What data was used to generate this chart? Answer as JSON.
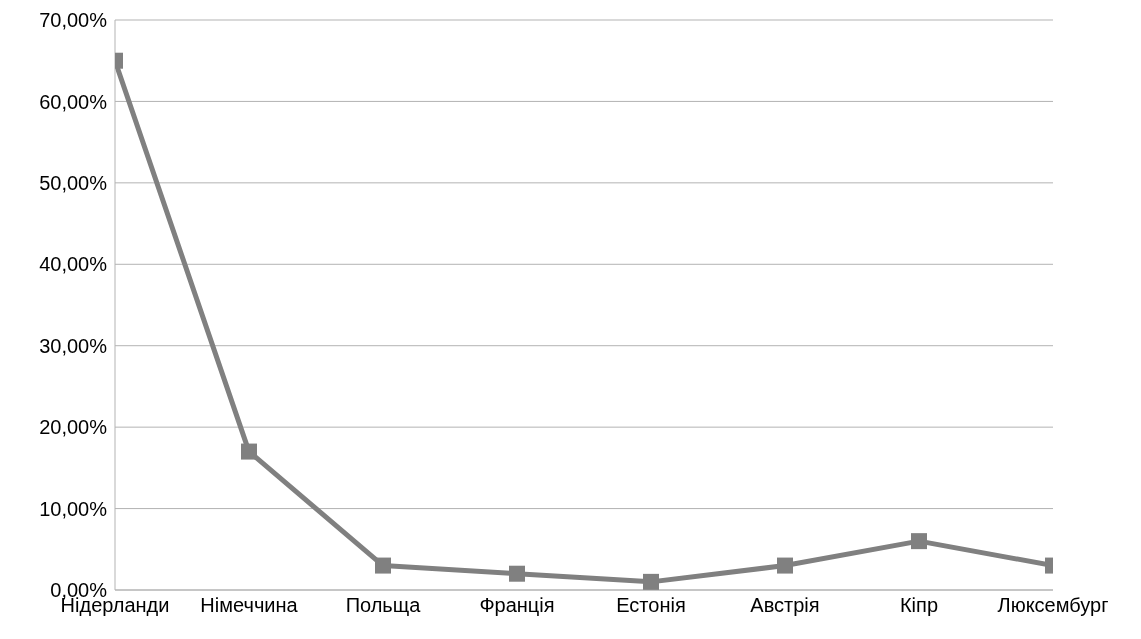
{
  "chart_data": {
    "type": "line",
    "categories": [
      "Нідерланди",
      "Німеччина",
      "Польща",
      "Франція",
      "Естонія",
      "Австрія",
      "Кіпр",
      "Люксембург"
    ],
    "series": [
      {
        "color": "#808080",
        "values": [
          65,
          17,
          3,
          2,
          1,
          3,
          6,
          3
        ]
      }
    ],
    "ylim": [
      0,
      70
    ],
    "yticks": [
      {
        "value": 0,
        "label": "0,00%"
      },
      {
        "value": 10,
        "label": "10,00%"
      },
      {
        "value": 20,
        "label": "20,00%"
      },
      {
        "value": 30,
        "label": "30,00%"
      },
      {
        "value": 40,
        "label": "40,00%"
      },
      {
        "value": 50,
        "label": "50,00%"
      },
      {
        "value": 60,
        "label": "60,00%"
      },
      {
        "value": 70,
        "label": "70,00%"
      }
    ],
    "grid": "y",
    "marker": "square",
    "legend": false
  }
}
